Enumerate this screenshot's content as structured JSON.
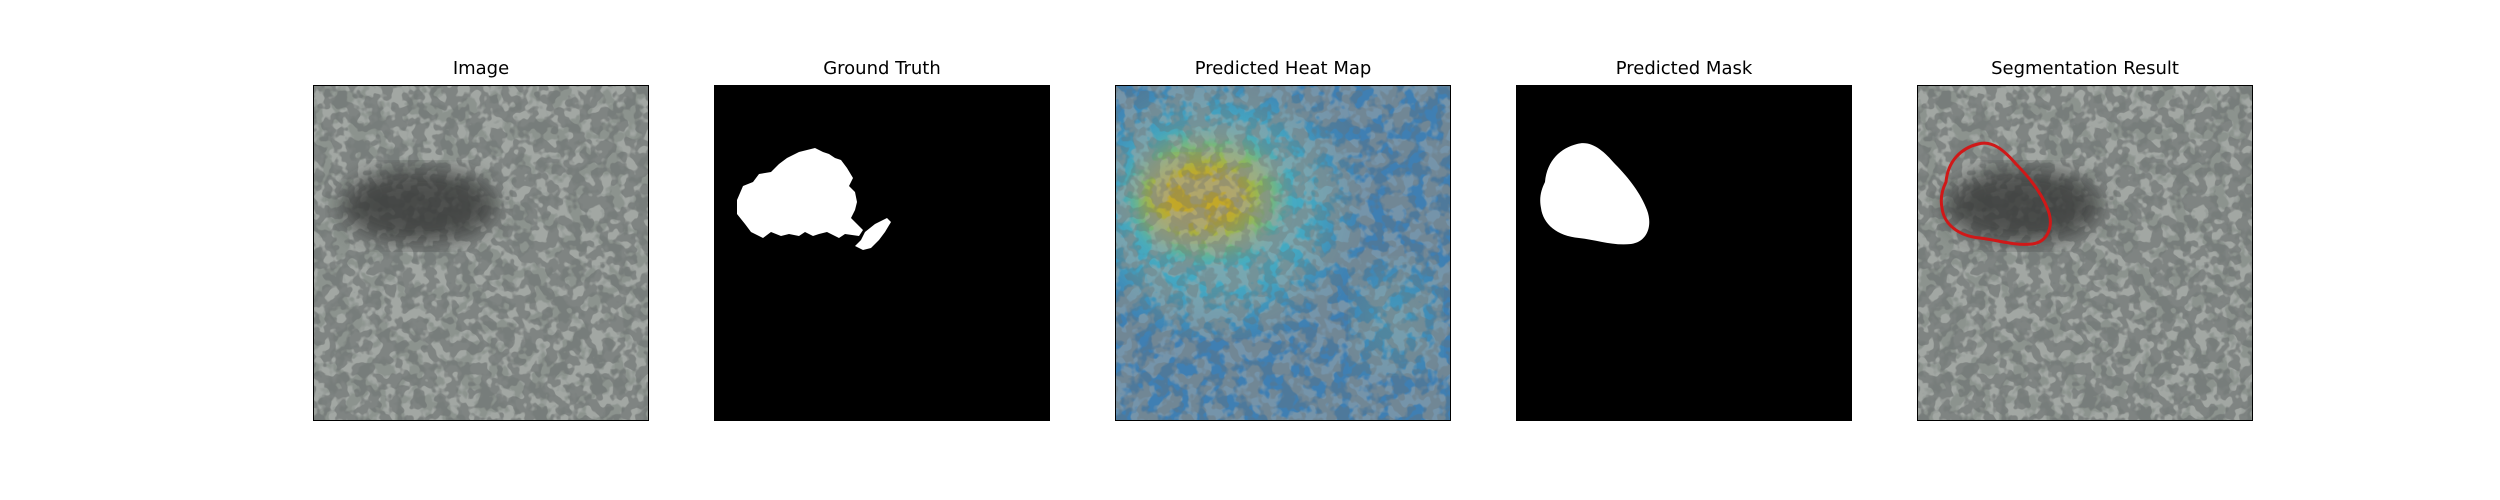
{
  "figure": {
    "panels": [
      {
        "title": "Image"
      },
      {
        "title": "Ground Truth"
      },
      {
        "title": "Predicted Heat Map"
      },
      {
        "title": "Predicted Mask"
      },
      {
        "title": "Segmentation Result"
      }
    ]
  },
  "colors": {
    "texture_light": "#8a918c",
    "texture_dark": "#2f3230",
    "mask_white": "#ffffff",
    "mask_black": "#000000",
    "heat_blue": "#3f7fb3",
    "heat_cyan": "#46b7c7",
    "heat_yellow": "#c9a620",
    "contour_red": "#d01818"
  }
}
